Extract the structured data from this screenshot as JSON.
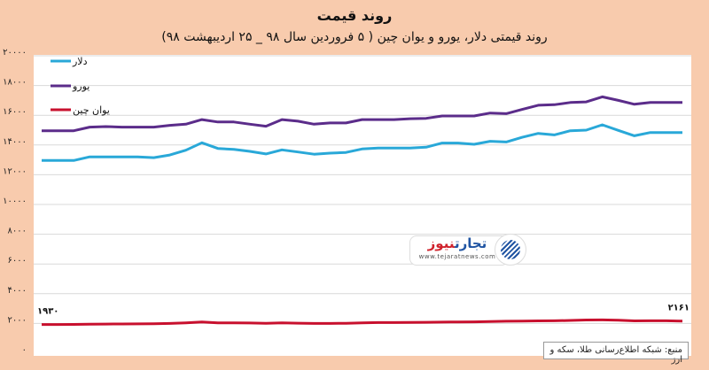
{
  "chart_data": {
    "type": "line",
    "title": "روند قیمت",
    "subtitle": "روند قیمتی دلار، یورو و یوان چین ( ۵ فروردین سال ۹۸ _ ۲۵ اردیبهشت ۹۸)",
    "xlabel": "",
    "ylabel": "",
    "ylim": [
      0,
      20000
    ],
    "yticks": [
      0,
      2000,
      4000,
      6000,
      8000,
      10000,
      12000,
      14000,
      16000,
      18000,
      20000
    ],
    "ytick_labels": [
      "۰",
      "۲۰۰۰",
      "۴۰۰۰",
      "۶۰۰۰",
      "۸۰۰۰",
      "۱۰۰۰۰",
      "۱۲۰۰۰",
      "۱۴۰۰۰",
      "۱۶۰۰۰",
      "۱۸۰۰۰",
      "۲۰۰۰۰"
    ],
    "grid": true,
    "legend_position": "top-left",
    "series": [
      {
        "name": "دلار",
        "color": "#29a8d8",
        "values": [
          12960,
          12960,
          12960,
          13200,
          13200,
          13200,
          13200,
          13150,
          13330,
          13650,
          14150,
          13770,
          13700,
          13570,
          13400,
          13670,
          13530,
          13380,
          13450,
          13500,
          13730,
          13790,
          13790,
          13800,
          13850,
          14130,
          14130,
          14050,
          14250,
          14200,
          14520,
          14780,
          14680,
          14960,
          15000,
          15360,
          14980,
          14620,
          14840,
          14840,
          14840
        ]
      },
      {
        "name": "یورو",
        "color": "#5b2c8a",
        "values": [
          14960,
          14960,
          14960,
          15200,
          15240,
          15200,
          15200,
          15200,
          15320,
          15400,
          15710,
          15550,
          15550,
          15400,
          15260,
          15710,
          15600,
          15400,
          15480,
          15480,
          15710,
          15710,
          15710,
          15770,
          15790,
          15950,
          15950,
          15950,
          16150,
          16110,
          16390,
          16670,
          16710,
          16860,
          16900,
          17240,
          17000,
          16740,
          16860,
          16860,
          16860
        ]
      },
      {
        "name": "یوان چین",
        "color": "#c8102e",
        "values": [
          1930,
          1930,
          1935,
          1950,
          1960,
          1965,
          1970,
          1975,
          2000,
          2040,
          2100,
          2040,
          2040,
          2030,
          2010,
          2040,
          2020,
          2000,
          2000,
          2010,
          2040,
          2060,
          2060,
          2070,
          2080,
          2090,
          2100,
          2110,
          2130,
          2150,
          2160,
          2170,
          2180,
          2200,
          2230,
          2240,
          2220,
          2170,
          2180,
          2180,
          2161
        ]
      }
    ],
    "annotations": [
      {
        "series": "یوان چین",
        "point": "first",
        "text": "۱۹۳۰"
      },
      {
        "series": "یوان چین",
        "point": "last",
        "text": "۲۱۶۱"
      }
    ]
  },
  "logo": {
    "name_part1": "تجارت",
    "name_part2": "نیوز",
    "url": "www.tejaratnews.com"
  },
  "source": "منبع: شبکه اطلاع‌رسانی طلا، سکه و ارز"
}
